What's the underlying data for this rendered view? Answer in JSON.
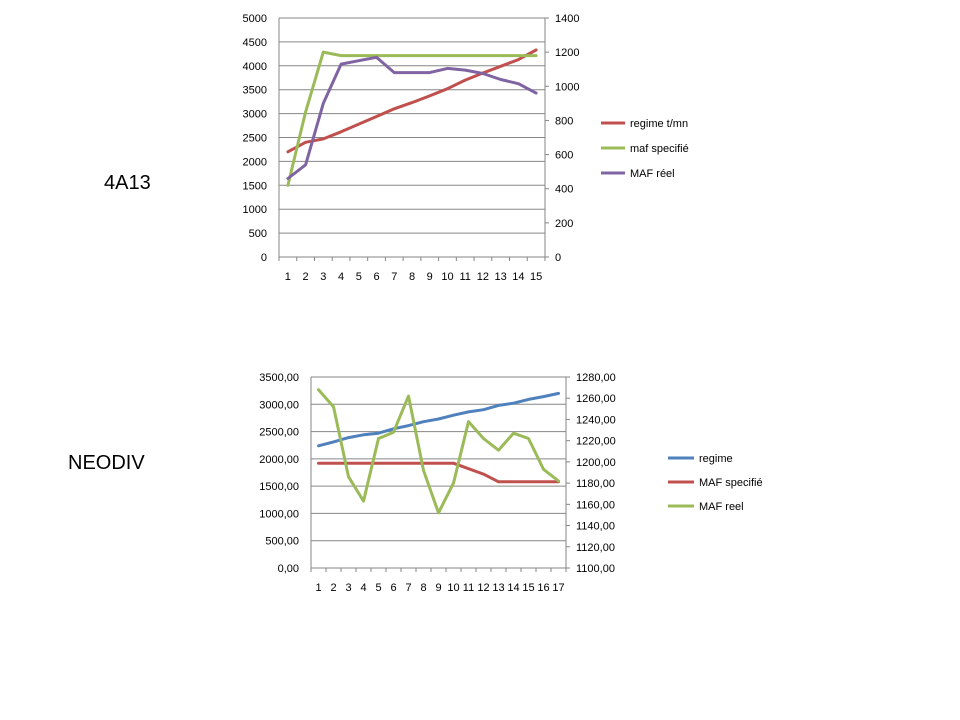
{
  "labels": {
    "chart1": "4A13",
    "chart2": "NEODIV"
  },
  "chart_data": [
    {
      "type": "line",
      "title": "4A13",
      "x": [
        1,
        2,
        3,
        4,
        5,
        6,
        7,
        8,
        9,
        10,
        11,
        12,
        13,
        14,
        15
      ],
      "x_ticks": [
        "1",
        "2",
        "3",
        "4",
        "5",
        "6",
        "7",
        "8",
        "9",
        "10",
        "11",
        "12",
        "13",
        "14",
        "15"
      ],
      "ylim_left": [
        0,
        5000
      ],
      "left_ticks": [
        "0",
        "500",
        "1000",
        "1500",
        "2000",
        "2500",
        "3000",
        "3500",
        "4000",
        "4500",
        "5000"
      ],
      "ylim_right": [
        0,
        1400
      ],
      "right_ticks": [
        "0",
        "200",
        "400",
        "600",
        "800",
        "1000",
        "1200",
        "1400"
      ],
      "grid": true,
      "legend_position": "right",
      "series": [
        {
          "name": "regime t/mn",
          "axis": "left",
          "color": "#c0504d",
          "values": [
            2200,
            2400,
            2470,
            2620,
            2780,
            2940,
            3100,
            3230,
            3370,
            3520,
            3700,
            3850,
            3990,
            4130,
            4330
          ]
        },
        {
          "name": "maf specifié",
          "axis": "right",
          "color": "#9bbb59",
          "values": [
            420,
            850,
            1200,
            1180,
            1180,
            1180,
            1180,
            1180,
            1180,
            1180,
            1180,
            1180,
            1180,
            1180,
            1180
          ]
        },
        {
          "name": "MAF réel",
          "axis": "right",
          "color": "#8064a2",
          "values": [
            460,
            540,
            900,
            1130,
            1150,
            1170,
            1080,
            1080,
            1080,
            1105,
            1095,
            1075,
            1040,
            1015,
            960
          ]
        }
      ]
    },
    {
      "type": "line",
      "title": "NEODIV",
      "x": [
        1,
        2,
        3,
        4,
        5,
        6,
        7,
        8,
        9,
        10,
        11,
        12,
        13,
        14,
        15,
        16,
        17
      ],
      "x_ticks": [
        "1",
        "2",
        "3",
        "4",
        "5",
        "6",
        "7",
        "8",
        "9",
        "10",
        "11",
        "12",
        "13",
        "14",
        "15",
        "16",
        "17"
      ],
      "ylim_left": [
        0,
        3500
      ],
      "left_ticks": [
        "0,00",
        "500,00",
        "1000,00",
        "1500,00",
        "2000,00",
        "2500,00",
        "3000,00",
        "3500,00"
      ],
      "ylim_right": [
        1100,
        1280
      ],
      "right_ticks": [
        "1100,00",
        "1120,00",
        "1140,00",
        "1160,00",
        "1180,00",
        "1200,00",
        "1220,00",
        "1240,00",
        "1260,00",
        "1280,00"
      ],
      "grid": true,
      "legend_position": "right",
      "series": [
        {
          "name": "regime",
          "axis": "left",
          "color": "#4f81bd",
          "values": [
            2240,
            2310,
            2390,
            2440,
            2470,
            2550,
            2610,
            2680,
            2730,
            2800,
            2860,
            2900,
            2980,
            3020,
            3090,
            3140,
            3200
          ]
        },
        {
          "name": "MAF specifié",
          "axis": "left",
          "color": "#c0504d",
          "values": [
            1920,
            1920,
            1920,
            1920,
            1920,
            1920,
            1920,
            1920,
            1920,
            1920,
            1820,
            1720,
            1580,
            1580,
            1580,
            1580,
            1580
          ]
        },
        {
          "name": "MAF reel",
          "axis": "right",
          "color": "#9bbb59",
          "values": [
            1268,
            1252,
            1186,
            1163,
            1222,
            1228,
            1262,
            1192,
            1152,
            1180,
            1238,
            1222,
            1211,
            1227,
            1222,
            1193,
            1182
          ]
        }
      ]
    }
  ]
}
